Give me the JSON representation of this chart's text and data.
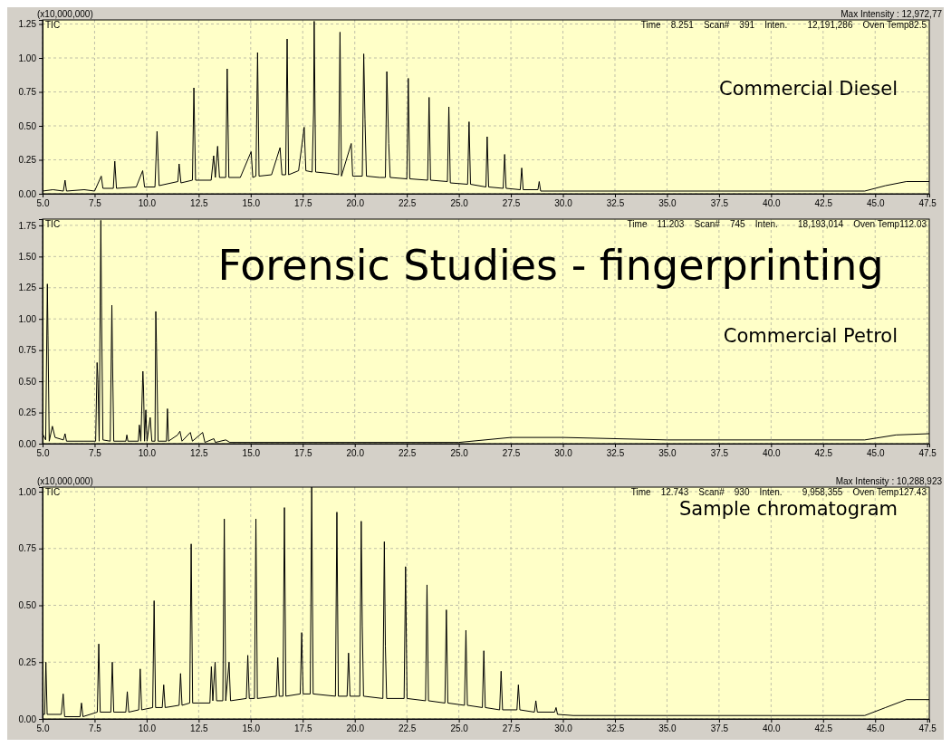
{
  "chart_data": [
    {
      "type": "line",
      "subtitle": "Commercial Diesel",
      "ylabel": "(x10,000,000)",
      "annotations": [
        "Max Intensity : 12,972,77",
        "Time    8.251    Scan#    391    Inten.        12,191,286    Oven Temp82.5"
      ],
      "grid": true,
      "xlim": [
        5,
        47.6
      ],
      "xticks": [
        {
          "value": 5,
          "label": "5.0"
        },
        7.5,
        {
          "value": 10,
          "label": "10.0"
        },
        12.5,
        {
          "value": 15,
          "label": "15.0"
        },
        17.5,
        {
          "value": 20,
          "label": "20.0"
        },
        22.5,
        {
          "value": 25,
          "label": "25.0"
        },
        27.5,
        {
          "value": 30,
          "label": "30.0"
        },
        32.5,
        {
          "value": 35,
          "label": "35.0"
        },
        37.5,
        {
          "value": 40,
          "label": "40.0"
        },
        42.5,
        {
          "value": 45,
          "label": "45.0"
        },
        47.5
      ],
      "ylim": [
        0,
        1.28
      ],
      "yticks": [
        {
          "value": 0,
          "label": "0.00"
        },
        0.25,
        {
          "value": 0.5,
          "label": "0.50"
        },
        0.75,
        {
          "value": 1,
          "label": "1.00"
        },
        1.25
      ],
      "series": [
        {
          "name": "TIC",
          "color": "#000000",
          "x": [
            5.0,
            5.5,
            6.0,
            6.08,
            6.15,
            7.0,
            7.5,
            7.82,
            7.9,
            8.4,
            8.47,
            8.55,
            9.5,
            9.81,
            9.9,
            10.4,
            10.5,
            10.6,
            11.5,
            11.56,
            11.65,
            12.2,
            12.27,
            12.35,
            13.1,
            13.22,
            13.3,
            13.41,
            13.5,
            13.8,
            13.87,
            13.95,
            14.5,
            15.02,
            15.1,
            15.25,
            15.33,
            15.4,
            16.0,
            16.41,
            16.5,
            16.68,
            16.75,
            16.82,
            17.3,
            17.57,
            17.65,
            17.95,
            18.02,
            18.05,
            18.12,
            18.8,
            19.22,
            19.29,
            19.36,
            19.83,
            19.9,
            20.36,
            20.43,
            20.49,
            20.56,
            21.2,
            21.47,
            21.54,
            21.63,
            21.7,
            22.5,
            22.57,
            22.64,
            23.5,
            23.57,
            23.64,
            24.45,
            24.52,
            24.59,
            25.42,
            25.49,
            25.56,
            26.3,
            26.36,
            26.43,
            27.13,
            27.2,
            27.27,
            27.95,
            28.02,
            28.09,
            28.8,
            28.86,
            28.93,
            30,
            35,
            40,
            44.5,
            45.5,
            46.5,
            47.6
          ],
          "values": [
            0.02,
            0.03,
            0.02,
            0.1,
            0.02,
            0.03,
            0.02,
            0.13,
            0.04,
            0.04,
            0.24,
            0.04,
            0.05,
            0.17,
            0.05,
            0.05,
            0.46,
            0.06,
            0.09,
            0.22,
            0.08,
            0.1,
            0.78,
            0.1,
            0.1,
            0.28,
            0.12,
            0.35,
            0.12,
            0.12,
            0.92,
            0.12,
            0.12,
            0.31,
            0.12,
            0.13,
            1.04,
            0.13,
            0.14,
            0.34,
            0.14,
            0.14,
            1.14,
            0.14,
            0.17,
            0.49,
            0.17,
            0.16,
            0.6,
            1.27,
            0.16,
            0.15,
            0.14,
            1.19,
            0.13,
            0.37,
            0.13,
            0.13,
            1.03,
            0.55,
            0.13,
            0.12,
            0.12,
            0.9,
            0.37,
            0.12,
            0.11,
            0.85,
            0.11,
            0.1,
            0.71,
            0.1,
            0.09,
            0.64,
            0.08,
            0.07,
            0.53,
            0.07,
            0.05,
            0.42,
            0.05,
            0.04,
            0.29,
            0.04,
            0.03,
            0.19,
            0.03,
            0.03,
            0.09,
            0.02,
            0.02,
            0.02,
            0.02,
            0.02,
            0.06,
            0.09,
            0.09
          ]
        }
      ]
    },
    {
      "type": "line",
      "title": "Forensic Studies - fingerprinting",
      "subtitle": "Commercial Petrol",
      "annotations": [
        "Time    11.203    Scan#    745    Inten.        18,193,014    Oven Temp112.03"
      ],
      "grid": true,
      "xlim": [
        5,
        47.6
      ],
      "xticks": [
        {
          "value": 5,
          "label": "5.0"
        },
        7.5,
        {
          "value": 10,
          "label": "10.0"
        },
        12.5,
        {
          "value": 15,
          "label": "15.0"
        },
        17.5,
        {
          "value": 20,
          "label": "20.0"
        },
        22.5,
        {
          "value": 25,
          "label": "25.0"
        },
        27.5,
        {
          "value": 30,
          "label": "30.0"
        },
        32.5,
        {
          "value": 35,
          "label": "35.0"
        },
        37.5,
        {
          "value": 40,
          "label": "40.0"
        },
        42.5,
        {
          "value": 45,
          "label": "45.0"
        },
        47.5
      ],
      "ylim": [
        0,
        1.8
      ],
      "yticks": [
        {
          "value": 0,
          "label": "0.00"
        },
        0.25,
        {
          "value": 0.5,
          "label": "0.50"
        },
        0.75,
        {
          "value": 1,
          "label": "1.00"
        },
        1.25,
        {
          "value": 1.5,
          "label": "1.50"
        },
        1.75
      ],
      "series": [
        {
          "name": "TIC",
          "color": "#000000",
          "x": [
            5.0,
            5.15,
            5.23,
            5.26,
            5.32,
            5.47,
            5.6,
            6.0,
            6.08,
            6.15,
            7.0,
            7.55,
            7.62,
            7.66,
            7.72,
            7.8,
            7.83,
            7.9,
            8.25,
            8.33,
            8.36,
            8.42,
            9.0,
            9.05,
            9.1,
            9.6,
            9.65,
            9.72,
            9.82,
            9.85,
            9.9,
            9.96,
            10.02,
            10.17,
            10.25,
            10.4,
            10.44,
            10.47,
            10.55,
            10.95,
            11.0,
            11.05,
            11.49,
            11.6,
            11.7,
            12.1,
            12.2,
            12.69,
            12.8,
            13.23,
            13.3,
            13.8,
            14.0,
            15,
            20,
            25,
            27.5,
            30,
            35,
            40,
            44.5,
            46,
            47.6
          ],
          "values": [
            0.08,
            0.03,
            1.28,
            0.87,
            0.02,
            0.14,
            0.05,
            0.03,
            0.08,
            0.02,
            0.02,
            0.02,
            0.65,
            0.51,
            0.02,
            1.79,
            1.11,
            0.03,
            0.02,
            1.11,
            0.68,
            0.02,
            0.02,
            0.07,
            0.02,
            0.02,
            0.15,
            0.02,
            0.58,
            0.45,
            0.02,
            0.27,
            0.02,
            0.21,
            0.02,
            0.02,
            1.06,
            0.81,
            0.02,
            0.02,
            0.28,
            0.02,
            0.07,
            0.1,
            0.02,
            0.09,
            0.02,
            0.09,
            0.01,
            0.04,
            0.01,
            0.03,
            0.01,
            0.01,
            0.01,
            0.01,
            0.05,
            0.05,
            0.03,
            0.03,
            0.03,
            0.07,
            0.08
          ]
        }
      ]
    },
    {
      "type": "line",
      "subtitle": "Sample chromatogram",
      "ylabel": "(x10,000,000)",
      "annotations": [
        "Max Intensity : 10,288,923",
        "Time    12.743    Scan#    930    Inten.        9,958,355    Oven Temp127.43"
      ],
      "grid": true,
      "xlim": [
        5,
        47.6
      ],
      "xticks": [
        {
          "value": 5,
          "label": "5.0"
        },
        7.5,
        {
          "value": 10,
          "label": "10.0"
        },
        12.5,
        {
          "value": 15,
          "label": "15.0"
        },
        17.5,
        {
          "value": 20,
          "label": "20.0"
        },
        22.5,
        {
          "value": 25,
          "label": "25.0"
        },
        27.5,
        {
          "value": 30,
          "label": "30.0"
        },
        32.5,
        {
          "value": 35,
          "label": "35.0"
        },
        37.5,
        {
          "value": 40,
          "label": "40.0"
        },
        42.5,
        {
          "value": 45,
          "label": "45.0"
        },
        47.5
      ],
      "ylim": [
        0,
        1.02
      ],
      "yticks": [
        {
          "value": 0,
          "label": "0.00"
        },
        0.25,
        {
          "value": 0.5,
          "label": "0.50"
        },
        0.75,
        {
          "value": 1,
          "label": "1.00"
        }
      ],
      "series": [
        {
          "name": "TIC",
          "color": "#000000",
          "x": [
            5.0,
            5.1,
            5.16,
            5.22,
            5.9,
            5.99,
            6.06,
            6.8,
            6.87,
            6.94,
            7.63,
            7.7,
            7.77,
            8.28,
            8.35,
            8.42,
            9.0,
            9.07,
            9.14,
            9.62,
            9.69,
            9.76,
            10.29,
            10.36,
            10.43,
            10.75,
            10.82,
            10.89,
            11.56,
            11.63,
            11.7,
            12.07,
            12.14,
            12.21,
            13.04,
            13.11,
            13.18,
            13.29,
            13.36,
            13.66,
            13.73,
            13.8,
            13.96,
            14.03,
            14.79,
            14.86,
            14.93,
            15.18,
            15.25,
            15.32,
            16.23,
            16.3,
            16.37,
            16.55,
            16.62,
            16.69,
            17.38,
            17.45,
            17.52,
            17.86,
            17.93,
            18.0,
            19.07,
            19.14,
            19.21,
            19.63,
            19.7,
            19.77,
            20.24,
            20.31,
            20.36,
            20.42,
            21.35,
            21.42,
            21.47,
            21.53,
            22.37,
            22.44,
            22.51,
            23.4,
            23.47,
            23.54,
            24.33,
            24.4,
            24.47,
            25.27,
            25.34,
            25.41,
            26.13,
            26.2,
            26.27,
            26.96,
            27.03,
            27.1,
            27.79,
            27.86,
            27.93,
            28.63,
            28.7,
            28.77,
            29.6,
            29.67,
            29.74,
            30.5,
            35,
            40,
            44.5,
            45.5,
            46.5,
            47.6
          ],
          "values": [
            0.02,
            0.02,
            0.25,
            0.02,
            0.02,
            0.11,
            0.01,
            0.01,
            0.07,
            0.01,
            0.03,
            0.33,
            0.03,
            0.03,
            0.25,
            0.03,
            0.03,
            0.12,
            0.03,
            0.04,
            0.22,
            0.04,
            0.05,
            0.52,
            0.05,
            0.05,
            0.15,
            0.05,
            0.06,
            0.2,
            0.06,
            0.07,
            0.77,
            0.07,
            0.07,
            0.23,
            0.08,
            0.25,
            0.08,
            0.08,
            0.88,
            0.08,
            0.25,
            0.08,
            0.09,
            0.28,
            0.09,
            0.09,
            0.88,
            0.09,
            0.1,
            0.27,
            0.1,
            0.1,
            0.93,
            0.1,
            0.11,
            0.38,
            0.11,
            0.11,
            1.02,
            0.11,
            0.1,
            0.91,
            0.1,
            0.1,
            0.29,
            0.1,
            0.1,
            0.87,
            0.41,
            0.1,
            0.09,
            0.78,
            0.32,
            0.09,
            0.09,
            0.67,
            0.09,
            0.08,
            0.59,
            0.08,
            0.07,
            0.48,
            0.07,
            0.06,
            0.39,
            0.06,
            0.05,
            0.3,
            0.05,
            0.04,
            0.21,
            0.04,
            0.04,
            0.15,
            0.04,
            0.03,
            0.08,
            0.03,
            0.03,
            0.05,
            0.02,
            0.015,
            0.015,
            0.015,
            0.015,
            0.05,
            0.085,
            0.085
          ]
        }
      ]
    }
  ]
}
